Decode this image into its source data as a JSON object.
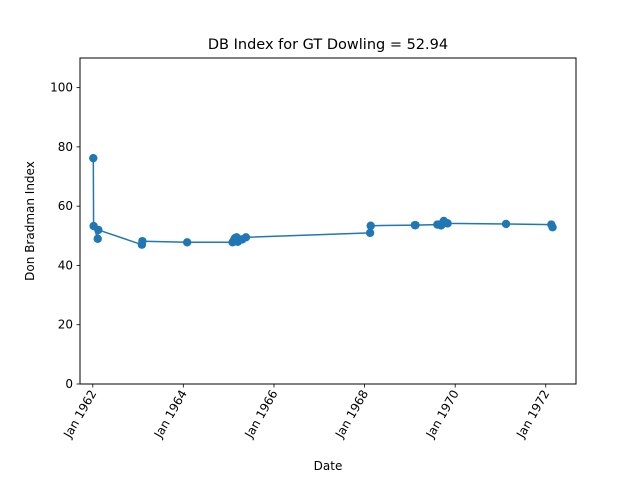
{
  "chart_data": {
    "type": "line",
    "title": "DB Index for GT Dowling = 52.94",
    "xlabel": "Date",
    "ylabel": "Don Bradman Index",
    "ylim": [
      0,
      110
    ],
    "xlim": [
      "1961-09-20",
      "1972-09-01"
    ],
    "grid": false,
    "y_ticks": [
      0,
      20,
      40,
      60,
      80,
      100
    ],
    "x_ticks": [
      {
        "date": "1962-01-01",
        "label": "Jan 1962"
      },
      {
        "date": "1964-01-01",
        "label": "Jan 1964"
      },
      {
        "date": "1966-01-01",
        "label": "Jan 1966"
      },
      {
        "date": "1968-01-01",
        "label": "Jan 1968"
      },
      {
        "date": "1970-01-01",
        "label": "Jan 1970"
      },
      {
        "date": "1972-01-01",
        "label": "Jan 1972"
      }
    ],
    "color": "#1f77b4",
    "series": [
      {
        "points": [
          {
            "x": "1962-01-05",
            "y": 76.2
          },
          {
            "x": "1962-01-08",
            "y": 53.3
          },
          {
            "x": "1962-02-10",
            "y": 49.0
          },
          {
            "x": "1962-02-15",
            "y": 52.0
          },
          {
            "x": "1963-02-01",
            "y": 47.0
          },
          {
            "x": "1963-02-05",
            "y": 48.2
          },
          {
            "x": "1964-02-01",
            "y": 47.8
          },
          {
            "x": "1965-02-01",
            "y": 47.8
          },
          {
            "x": "1965-02-12",
            "y": 48.5
          },
          {
            "x": "1965-02-20",
            "y": 49.2
          },
          {
            "x": "1965-03-05",
            "y": 49.5
          },
          {
            "x": "1965-03-15",
            "y": 48.0
          },
          {
            "x": "1965-04-20",
            "y": 48.8
          },
          {
            "x": "1965-05-20",
            "y": 49.5
          },
          {
            "x": "1968-02-15",
            "y": 51.0
          },
          {
            "x": "1968-02-20",
            "y": 53.4
          },
          {
            "x": "1969-02-10",
            "y": 53.6
          },
          {
            "x": "1969-02-15",
            "y": 53.6
          },
          {
            "x": "1969-08-10",
            "y": 53.8
          },
          {
            "x": "1969-08-20",
            "y": 53.8
          },
          {
            "x": "1969-09-10",
            "y": 53.5
          },
          {
            "x": "1969-10-01",
            "y": 55.0
          },
          {
            "x": "1969-10-15",
            "y": 54.4
          },
          {
            "x": "1969-11-01",
            "y": 54.2
          },
          {
            "x": "1971-02-15",
            "y": 54.0
          },
          {
            "x": "1972-02-15",
            "y": 53.8
          },
          {
            "x": "1972-02-25",
            "y": 52.9
          }
        ]
      }
    ]
  }
}
